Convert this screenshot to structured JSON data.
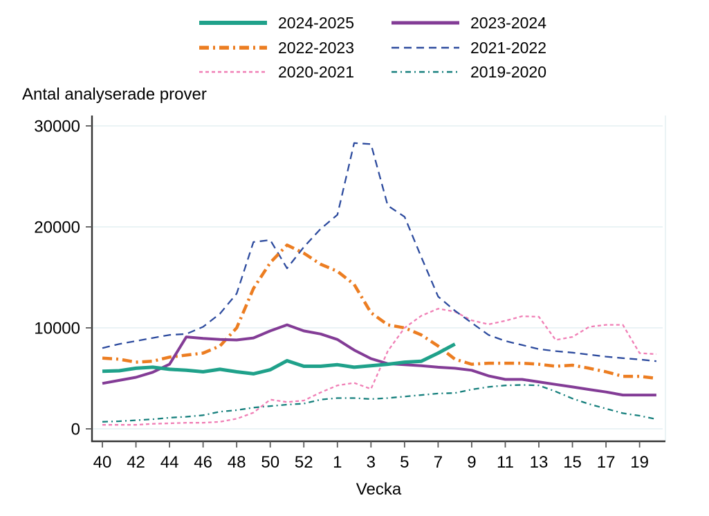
{
  "chart_data": {
    "type": "line",
    "title": "Antal analyserade prover",
    "xlabel": "Vecka",
    "ylabel": "",
    "ylim": [
      0,
      30000
    ],
    "yticks": [
      0,
      10000,
      20000,
      30000
    ],
    "xtick_labels": [
      "40",
      "42",
      "44",
      "46",
      "48",
      "50",
      "52",
      "1",
      "3",
      "5",
      "7",
      "9",
      "11",
      "13",
      "15",
      "17",
      "19"
    ],
    "categories": [
      "40",
      "41",
      "42",
      "43",
      "44",
      "45",
      "46",
      "47",
      "48",
      "49",
      "50",
      "51",
      "52",
      "53",
      "1",
      "2",
      "3",
      "4",
      "5",
      "6",
      "7",
      "8",
      "9",
      "10",
      "11",
      "12",
      "13",
      "14",
      "15",
      "16",
      "17",
      "18",
      "19",
      "20"
    ],
    "grid": "horizontal",
    "legend_position": "top-center",
    "colors": {
      "grid": "#E4EFF2",
      "axis": "#333333",
      "tick": "#5A5A5A",
      "text": "#000000"
    },
    "series": [
      {
        "name": "2024-2025",
        "color": "#1FA18A",
        "style": "solid",
        "width": 5,
        "values": [
          5700,
          5750,
          6000,
          6100,
          5900,
          5800,
          5650,
          5900,
          5650,
          5450,
          5850,
          6750,
          6200,
          6200,
          6350,
          6100,
          6250,
          6400,
          6600,
          6700,
          7500,
          8400
        ]
      },
      {
        "name": "2023-2024",
        "color": "#833C96",
        "style": "solid",
        "width": 4,
        "values": [
          4500,
          4800,
          5100,
          5600,
          6400,
          9100,
          8950,
          8850,
          8800,
          9000,
          9700,
          10300,
          9700,
          9400,
          8850,
          7800,
          6950,
          6450,
          6350,
          6250,
          6100,
          6000,
          5800,
          5250,
          4900,
          4900,
          4650,
          4400,
          4150,
          3900,
          3650,
          3350,
          3350,
          3350
        ]
      },
      {
        "name": "2022-2023",
        "color": "#EC7D21",
        "style": "long-dash-dot",
        "width": 4.5,
        "values": [
          7000,
          6900,
          6600,
          6700,
          7100,
          7300,
          7500,
          8200,
          10000,
          13900,
          16450,
          18200,
          17400,
          16300,
          15600,
          14300,
          11500,
          10300,
          10000,
          9300,
          8200,
          6900,
          6400,
          6500,
          6500,
          6500,
          6400,
          6200,
          6300,
          6000,
          5650,
          5200,
          5200,
          5000
        ]
      },
      {
        "name": "2021-2022",
        "color": "#2D4B9E",
        "style": "dash",
        "width": 2.3,
        "values": [
          8000,
          8400,
          8700,
          9000,
          9300,
          9400,
          10100,
          11400,
          13400,
          18500,
          18700,
          15900,
          18000,
          19800,
          21200,
          28300,
          28200,
          22100,
          21000,
          17000,
          13100,
          11700,
          10500,
          9300,
          8700,
          8300,
          7900,
          7700,
          7550,
          7350,
          7150,
          7000,
          6870,
          6700
        ]
      },
      {
        "name": "2020-2021",
        "color": "#F07EB5",
        "style": "short-dash",
        "width": 2.3,
        "values": [
          400,
          400,
          400,
          500,
          550,
          600,
          600,
          700,
          1000,
          1600,
          2900,
          2650,
          2800,
          3600,
          4300,
          4550,
          3950,
          7700,
          10000,
          11200,
          11900,
          11600,
          10750,
          10350,
          10700,
          11150,
          11100,
          8800,
          9100,
          10100,
          10300,
          10300,
          7500,
          7400
        ]
      },
      {
        "name": "2019-2020",
        "color": "#157F7C",
        "style": "dash-dot",
        "width": 2.3,
        "values": [
          700,
          750,
          850,
          950,
          1100,
          1200,
          1350,
          1700,
          1850,
          2100,
          2250,
          2400,
          2500,
          2900,
          3050,
          3050,
          2950,
          3050,
          3200,
          3350,
          3500,
          3550,
          3900,
          4150,
          4300,
          4350,
          4300,
          3700,
          3000,
          2450,
          2000,
          1550,
          1300,
          950
        ]
      }
    ]
  }
}
